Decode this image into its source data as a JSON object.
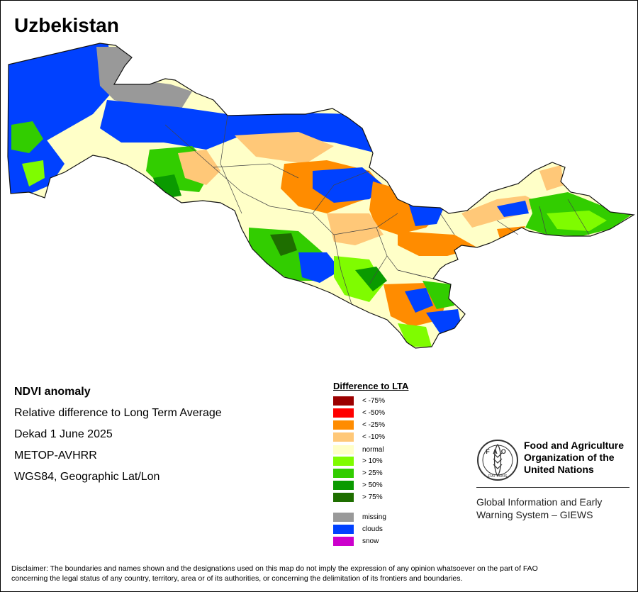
{
  "map": {
    "title": "Uzbekistan"
  },
  "info": {
    "heading": "NDVI anomaly",
    "line1": "Relative difference to Long Term Average",
    "line2": "Dekad 1 June 2025",
    "line3": "METOP-AVHRR",
    "line4": "WGS84, Geographic Lat/Lon"
  },
  "legend": {
    "title": "Difference to LTA",
    "items": [
      {
        "label": "< -75%",
        "color": "#9b0000"
      },
      {
        "label": "< -50%",
        "color": "#ff0000"
      },
      {
        "label": "< -25%",
        "color": "#ff8c00"
      },
      {
        "label": "< -10%",
        "color": "#ffc878"
      },
      {
        "label": "normal",
        "color": "#ffffc8"
      },
      {
        "label": "> 10%",
        "color": "#7ffc00"
      },
      {
        "label": "> 25%",
        "color": "#32cd00"
      },
      {
        "label": "> 50%",
        "color": "#0a9a00"
      },
      {
        "label": "> 75%",
        "color": "#1e6e00"
      },
      {
        "label": "missing",
        "color": "#999999"
      },
      {
        "label": "clouds",
        "color": "#0041ff"
      },
      {
        "label": "snow",
        "color": "#cc00cc"
      }
    ]
  },
  "fao": {
    "name_line1": "Food and Agriculture",
    "name_line2": "Organization of the",
    "name_line3": "United Nations",
    "giews_line1": "Global Information and Early",
    "giews_line2": "Warning System – GIEWS",
    "logo_text": "FAO",
    "logo_motto": "FIAT PANIS"
  },
  "disclaimer": {
    "line1": "Disclaimer: The boundaries and names shown and the designations used on this map do not imply the expression of any opinion whatsoever on the part of FAO",
    "line2": "concerning the legal status of any country, territory, area or of its authorities, or concerning the delimitation of its frontiers and boundaries."
  }
}
